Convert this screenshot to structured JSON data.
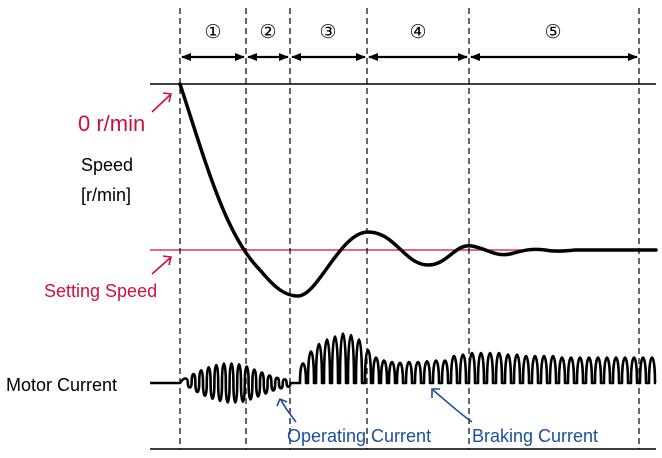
{
  "phases": [
    "①",
    "②",
    "③",
    "④",
    "⑤"
  ],
  "labels": {
    "zero_speed": "0 r/min",
    "speed_axis_line1": "Speed",
    "speed_axis_line2": "[r/min]",
    "setting_speed": "Setting Speed",
    "motor_current": "Motor Current",
    "operating_current": "Operating Current",
    "braking_current": "Braking Current"
  },
  "colors": {
    "accent_red": "#d0103a",
    "accent_blue": "#1a4f9c",
    "line": "#000000"
  }
}
